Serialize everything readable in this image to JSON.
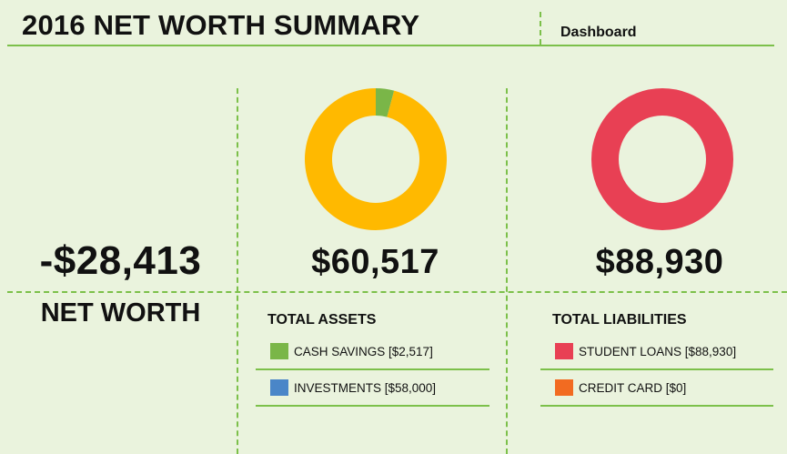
{
  "header": {
    "title": "2016 NET WORTH SUMMARY",
    "tab": "Dashboard"
  },
  "net_worth": {
    "value": "-$28,413",
    "label": "NET WORTH"
  },
  "assets": {
    "total": "$60,517",
    "heading": "TOTAL ASSETS",
    "items": [
      {
        "label": "CASH SAVINGS [$2,517]",
        "color": "#7ab648"
      },
      {
        "label": "INVESTMENTS [$58,000]",
        "color": "#4a86c8"
      }
    ]
  },
  "liabilities": {
    "total": "$88,930",
    "heading": "TOTAL LIABILITIES",
    "items": [
      {
        "label": "STUDENT LOANS [$88,930]",
        "color": "#e84054"
      },
      {
        "label": "CREDIT CARD [$0]",
        "color": "#f26b21"
      }
    ]
  },
  "chart_data": [
    {
      "type": "pie",
      "categories": [
        "CASH SAVINGS",
        "INVESTMENTS"
      ],
      "values": [
        2517,
        58000
      ],
      "colors": [
        "#7ab648",
        "#ffb900"
      ]
    },
    {
      "type": "pie",
      "categories": [
        "STUDENT LOANS",
        "CREDIT CARD"
      ],
      "values": [
        88930,
        0
      ],
      "colors": [
        "#e84054",
        "#f26b21"
      ]
    }
  ]
}
